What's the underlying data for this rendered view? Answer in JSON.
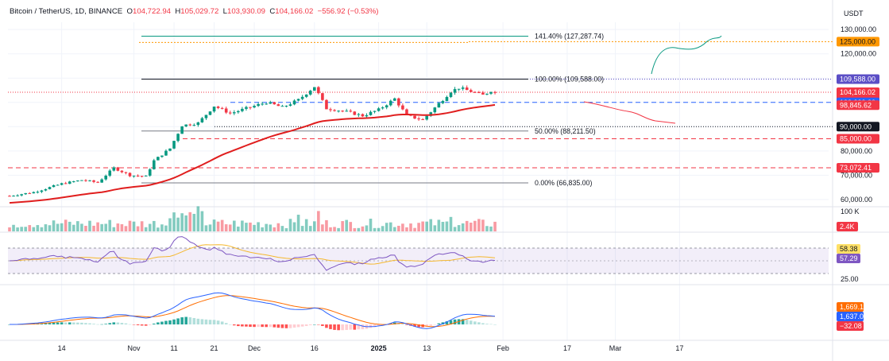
{
  "header": {
    "symbol": "Bitcoin / TetherUS, 1D, BINANCE",
    "o_label": "O",
    "o_value": "104,722.94",
    "h_label": "H",
    "h_value": "105,029.72",
    "l_label": "L",
    "l_value": "103,930.09",
    "c_label": "C",
    "c_value": "104,166.02",
    "change": "−556.92 (−0.53%)"
  },
  "price_axis": {
    "unit_label": "USDT",
    "ticks": [
      "130,000.00",
      "120,000.00",
      "80,000.00",
      "70,000.00",
      "60,000.00"
    ]
  },
  "price_badges": [
    {
      "text": "125,000.00",
      "bg": "#ff9800",
      "fg": "#131722",
      "value": 125000
    },
    {
      "text": "109,588.00",
      "bg": "#5b4ec6",
      "fg": "#ffffff",
      "value": 109588
    },
    {
      "text": "104,166.02",
      "bg": "#f23645",
      "fg": "#ffffff",
      "value": 104166.02,
      "sub": "20:16:28"
    },
    {
      "text": "100,000.00",
      "bg": "#2962ff",
      "fg": "#ffffff",
      "value": 100000
    },
    {
      "text": "98,845.62",
      "bg": "#f23645",
      "fg": "#ffffff",
      "value": 98845.62
    },
    {
      "text": "90,000.00",
      "bg": "#131722",
      "fg": "#ffffff",
      "value": 90000
    },
    {
      "text": "85,000.00",
      "bg": "#f23645",
      "fg": "#ffffff",
      "value": 85000
    },
    {
      "text": "73,072.41",
      "bg": "#f23645",
      "fg": "#ffffff",
      "value": 73072.41
    }
  ],
  "fib_labels": [
    {
      "text": "141.40% (127,287.74)",
      "value": 127287.74
    },
    {
      "text": "100.00% (109,588.00)",
      "value": 109588
    },
    {
      "text": "50.00% (88,211.50)",
      "value": 88211.5
    },
    {
      "text": "0.00% (66,835.00)",
      "value": 66835
    }
  ],
  "volume_pane": {
    "axis_label": "100 K",
    "badge": "2.4K",
    "badge_bg": "#f23645"
  },
  "rsi_pane": {
    "ticks": [
      "75.00",
      "25.00"
    ],
    "badges": [
      {
        "text": "58.38",
        "bg": "#ffe066",
        "fg": "#131722"
      },
      {
        "text": "57.29",
        "bg": "#7e57c2",
        "fg": "#ffffff"
      }
    ]
  },
  "macd_pane": {
    "badges": [
      {
        "text": "1,669.17",
        "bg": "#ff6d00",
        "fg": "#ffffff"
      },
      {
        "text": "1,637.09",
        "bg": "#2962ff",
        "fg": "#ffffff"
      },
      {
        "text": "−32.08",
        "bg": "#f23645",
        "fg": "#ffffff"
      }
    ]
  },
  "time_axis": [
    "14",
    "Nov",
    "11",
    "21",
    "Dec",
    "16",
    "2025",
    "13",
    "Feb",
    "17",
    "Mar",
    "17"
  ],
  "colors": {
    "up": "#089981",
    "down": "#f23645",
    "ema": "#e01e1e",
    "rsi": "#7e57c2",
    "rsi_ma": "#f5b82e",
    "macd": "#2962ff",
    "signal": "#ff6d00"
  },
  "chart_data": {
    "type": "candlestick",
    "y_range": [
      58000,
      133000
    ],
    "price_estimates": [
      {
        "date": "early Oct 2024",
        "close": 62000
      },
      {
        "date": "Oct 14 2024",
        "close": 66000
      },
      {
        "date": "late Oct 2024",
        "close": 72000
      },
      {
        "date": "Nov 11 2024",
        "close": 86000
      },
      {
        "date": "Nov 21 2024",
        "close": 98000
      },
      {
        "date": "Dec 16 2024",
        "close": 106000
      },
      {
        "date": "Jan 2 2025",
        "close": 96000
      },
      {
        "date": "Jan 13 2025",
        "close": 94000
      },
      {
        "date": "Jan 20 2025",
        "close": 108000
      },
      {
        "date": "Jan 31 2025",
        "close": 104166.02
      }
    ],
    "horizontal_levels": [
      125000,
      109588,
      100000,
      90000,
      85000,
      73072.41
    ],
    "fibonacci": [
      {
        "level": "141.40%",
        "price": 127287.74
      },
      {
        "level": "100.00%",
        "price": 109588
      },
      {
        "level": "50.00%",
        "price": 88211.5
      },
      {
        "level": "0.00%",
        "price": 66835
      }
    ],
    "ema_last": 98845.62,
    "rsi_last": 57.29,
    "rsi_ma_last": 58.38,
    "macd_last": 1637.09,
    "signal_last": 1669.17,
    "histogram_last": -32.08
  }
}
